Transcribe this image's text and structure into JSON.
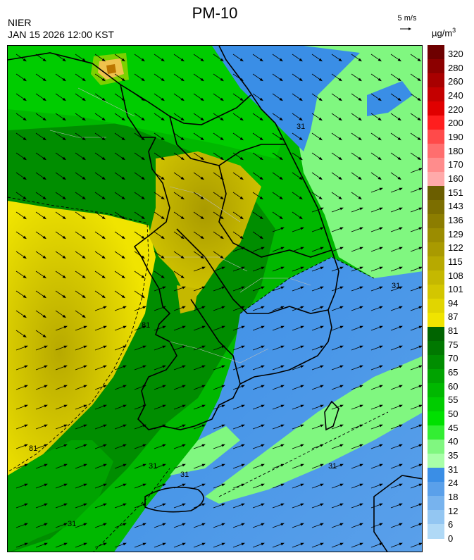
{
  "header": {
    "title": "PM-10",
    "agency": "NIER",
    "datetime": "JAN 15 2026 12:00 KST",
    "reference_vector": "5 m/s",
    "unit_base": "µg/m",
    "unit_exp": "3"
  },
  "legend": {
    "labels": [
      "320",
      "280",
      "260",
      "240",
      "220",
      "200",
      "190",
      "180",
      "170",
      "160",
      "151",
      "143",
      "136",
      "129",
      "122",
      "115",
      "108",
      "101",
      "94",
      "87",
      "81",
      "75",
      "70",
      "65",
      "60",
      "55",
      "50",
      "45",
      "40",
      "35",
      "31",
      "24",
      "18",
      "12",
      "6",
      "0"
    ],
    "colors": [
      "#6e0000",
      "#8c0000",
      "#a80000",
      "#c40000",
      "#e00000",
      "#ff1e1e",
      "#ff4a4a",
      "#ff6e6e",
      "#ff8c8c",
      "#ffaaaa",
      "#6b5e00",
      "#7c6e00",
      "#8c7d00",
      "#9b8c00",
      "#a99a00",
      "#b7a900",
      "#c5b800",
      "#d3c600",
      "#e1d500",
      "#f0e400",
      "#006400",
      "#007800",
      "#008d00",
      "#00a300",
      "#00b800",
      "#00cc00",
      "#00e000",
      "#33ee33",
      "#80f780",
      "#a8ffa8",
      "#3a8ee6",
      "#5aa0ea",
      "#77b3ee",
      "#93c6f2",
      "#b0d9f6"
    ]
  },
  "contours": [
    {
      "label": "81"
    },
    {
      "label": "81"
    },
    {
      "label": "31"
    },
    {
      "label": "31"
    },
    {
      "label": "31"
    },
    {
      "label": "31"
    },
    {
      "label": "31"
    },
    {
      "label": "31"
    }
  ],
  "wind": {
    "upper_direction": "southeast",
    "lower_direction": "east-northeast"
  }
}
